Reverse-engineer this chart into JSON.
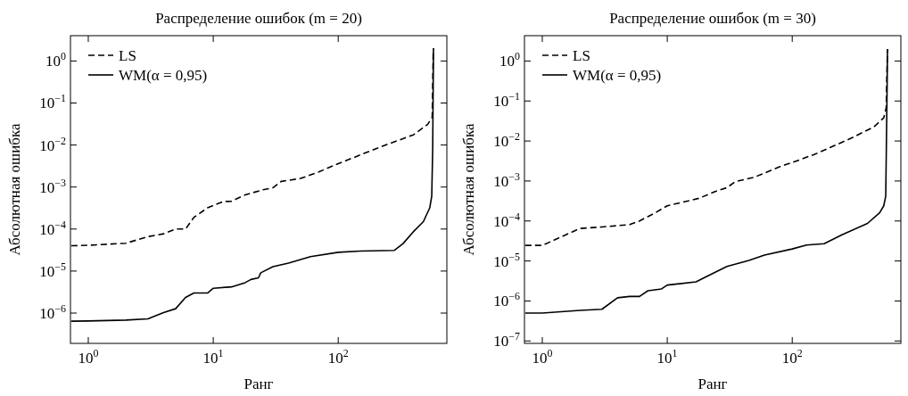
{
  "chart_data": [
    {
      "type": "line",
      "title": "Распределение ошибок (m = 20)",
      "xlabel": "Ранг",
      "ylabel": "Абсолютная ошибка",
      "log": "xy",
      "legend": "top left",
      "grid": false,
      "xlim": [
        0.72,
        740
      ],
      "ylim": [
        1.9e-07,
        4
      ],
      "xticks": [
        {
          "value": 1,
          "label": "10$^{0}$"
        },
        {
          "value": 10,
          "label": "10$^{1}$"
        },
        {
          "value": 100,
          "label": "10$^{2}$"
        }
      ],
      "yticks": [
        {
          "value": 1e-06,
          "label": "10$^{−6}$"
        },
        {
          "value": 1e-05,
          "label": "10$^{−5}$"
        },
        {
          "value": 0.0001,
          "label": "10$^{−4}$"
        },
        {
          "value": 0.001,
          "label": "10$^{−3}$"
        },
        {
          "value": 0.01,
          "label": "10$^{−2}$"
        },
        {
          "value": 0.1,
          "label": "10$^{−1}$"
        },
        {
          "value": 1,
          "label": "10$^{0}$"
        }
      ],
      "series": [
        {
          "name": "LS",
          "color": "#000000",
          "line_style": "dashed",
          "x": [
            0.73,
            1,
            2,
            3,
            4,
            5,
            6,
            7,
            9,
            12,
            14,
            18,
            25,
            30,
            35,
            50,
            70,
            100,
            150,
            250,
            400,
            520,
            565,
            575,
            580
          ],
          "values": [
            4e-05,
            4.1e-05,
            4.6e-05,
            6.6e-05,
            7.7e-05,
            0.0001,
            0.0001,
            0.00019,
            0.00032,
            0.00045,
            0.00046,
            0.00065,
            0.00086,
            0.00096,
            0.00136,
            0.0016,
            0.0023,
            0.0036,
            0.0058,
            0.0105,
            0.0175,
            0.031,
            0.046,
            1.5,
            2
          ]
        },
        {
          "name": "WM(α = 0,95)",
          "color": "#000000",
          "line_style": "solid",
          "x": [
            0.73,
            1,
            2,
            3,
            4,
            5,
            6,
            7,
            9,
            10,
            14,
            18,
            20,
            23,
            24,
            30,
            40,
            60,
            100,
            150,
            280,
            330,
            400,
            480,
            540,
            560,
            570,
            575,
            578
          ],
          "values": [
            6.4e-07,
            6.5e-07,
            6.8e-07,
            7.3e-07,
            1.03e-06,
            1.27e-06,
            2.35e-06,
            3e-06,
            3e-06,
            3.9e-06,
            4.2e-06,
            5.3e-06,
            6.3e-06,
            6.9e-06,
            9.1e-06,
            1.27e-05,
            1.55e-05,
            2.2e-05,
            2.8e-05,
            3e-05,
            3.1e-05,
            4.5e-05,
            8.7e-05,
            0.00015,
            0.00032,
            0.00061,
            0.0084,
            0.22,
            2
          ]
        }
      ]
    },
    {
      "type": "line",
      "title": "Распределение ошибок (m = 30)",
      "xlabel": "Ранг",
      "ylabel": "Абсолютная ошибка",
      "log": "xy",
      "legend": "top left",
      "grid": false,
      "xlim": [
        0.72,
        740
      ],
      "ylim": [
        8.7e-08,
        4.3
      ],
      "xticks": [
        {
          "value": 1,
          "label": "10$^{0}$"
        },
        {
          "value": 10,
          "label": "10$^{1}$"
        },
        {
          "value": 100,
          "label": "10$^{2}$"
        }
      ],
      "yticks": [
        {
          "value": 1e-07,
          "label": "10$^{−7}$"
        },
        {
          "value": 1e-06,
          "label": "10$^{−6}$"
        },
        {
          "value": 1e-05,
          "label": "10$^{−5}$"
        },
        {
          "value": 0.0001,
          "label": "10$^{−4}$"
        },
        {
          "value": 0.001,
          "label": "10$^{−3}$"
        },
        {
          "value": 0.01,
          "label": "10$^{−2}$"
        },
        {
          "value": 0.1,
          "label": "10$^{−1}$"
        },
        {
          "value": 1,
          "label": "10$^{0}$"
        }
      ],
      "series": [
        {
          "name": "LS",
          "color": "#000000",
          "line_style": "dashed",
          "x": [
            0.73,
            1,
            2,
            3,
            5,
            6,
            8,
            10,
            13,
            18,
            25,
            30,
            35,
            50,
            80,
            100,
            150,
            200,
            300,
            450,
            540,
            565,
            575,
            580
          ],
          "values": [
            2.45e-05,
            2.45e-05,
            6.5e-05,
            7.1e-05,
            8.1e-05,
            0.0001,
            0.00016,
            0.00024,
            0.00029,
            0.00037,
            0.00057,
            0.00068,
            0.00096,
            0.00125,
            0.0023,
            0.0029,
            0.0046,
            0.0068,
            0.012,
            0.0225,
            0.038,
            0.068,
            1,
            2
          ]
        },
        {
          "name": "WM(α = 0,95)",
          "color": "#000000",
          "line_style": "solid",
          "x": [
            0.73,
            1,
            2,
            3,
            4,
            5,
            6,
            7,
            9,
            10,
            17,
            20,
            25,
            30,
            45,
            60,
            100,
            130,
            180,
            250,
            400,
            500,
            540,
            560,
            570,
            575,
            578
          ],
          "values": [
            5e-07,
            5e-07,
            5.8e-07,
            6.2e-07,
            1.2e-06,
            1.3e-06,
            1.3e-06,
            1.8e-06,
            2e-06,
            2.5e-06,
            3e-06,
            3.9e-06,
            5.5e-06,
            7.3e-06,
            1.03e-05,
            1.4e-05,
            2e-05,
            2.5e-05,
            2.7e-05,
            4.5e-05,
            8.7e-05,
            0.00016,
            0.00024,
            0.00042,
            0.035,
            0.3,
            2
          ]
        }
      ]
    }
  ]
}
